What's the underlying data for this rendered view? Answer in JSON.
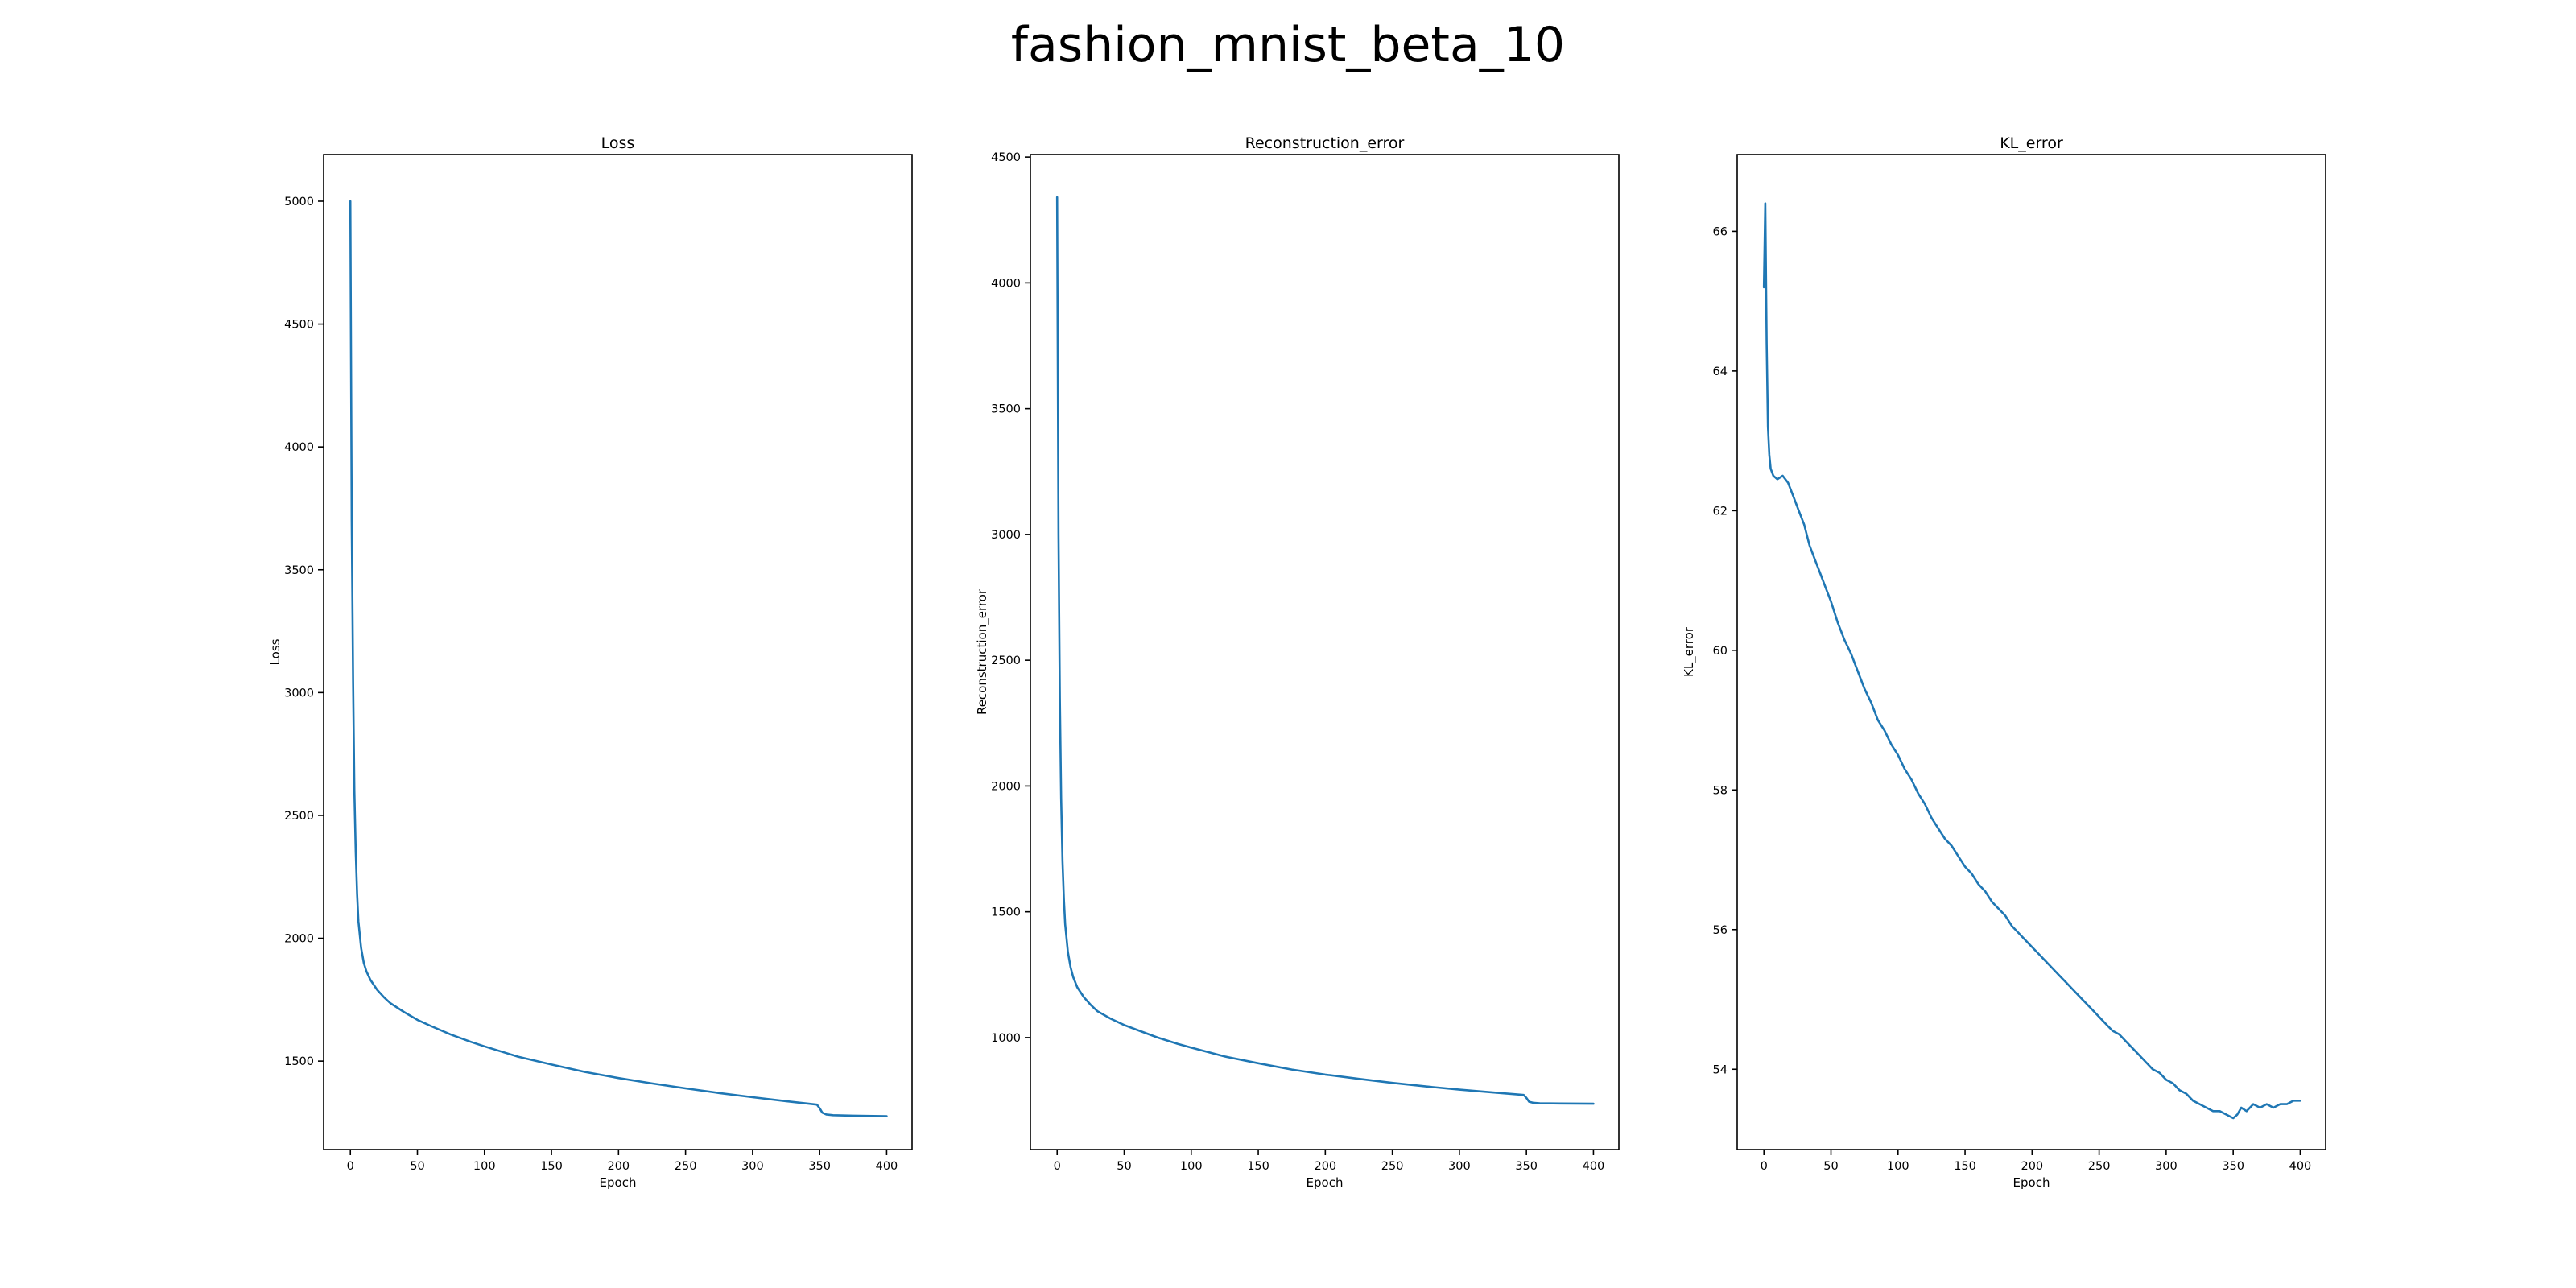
{
  "figure": {
    "suptitle": "fashion_mnist_beta_10",
    "line_color": "#1f77b4"
  },
  "chart_data": [
    {
      "type": "line",
      "title": "Loss",
      "xlabel": "Epoch",
      "ylabel": "Loss",
      "xlim": [
        -19.95,
        418.95
      ],
      "ylim": [
        1140,
        5190
      ],
      "xticks": [
        0,
        50,
        100,
        150,
        200,
        250,
        300,
        350,
        400
      ],
      "yticks": [
        1500,
        2000,
        2500,
        3000,
        3500,
        4000,
        4500,
        5000
      ],
      "grid": false,
      "x": [
        0,
        1,
        2,
        3,
        4,
        5,
        6,
        8,
        10,
        12,
        15,
        20,
        25,
        30,
        40,
        50,
        60,
        75,
        90,
        100,
        125,
        150,
        175,
        200,
        225,
        250,
        275,
        300,
        325,
        348,
        350,
        352,
        355,
        360,
        375,
        400
      ],
      "values": [
        5000,
        3700,
        3050,
        2600,
        2350,
        2180,
        2070,
        1960,
        1900,
        1865,
        1830,
        1790,
        1760,
        1735,
        1700,
        1668,
        1643,
        1608,
        1578,
        1560,
        1518,
        1486,
        1456,
        1431,
        1409,
        1389,
        1370,
        1353,
        1337,
        1323,
        1308,
        1290,
        1283,
        1280,
        1278,
        1276
      ]
    },
    {
      "type": "line",
      "title": "Reconstruction_error",
      "xlabel": "Epoch",
      "ylabel": "Reconstruction_error",
      "xlim": [
        -19.95,
        418.95
      ],
      "ylim": [
        555,
        4510
      ],
      "xticks": [
        0,
        50,
        100,
        150,
        200,
        250,
        300,
        350,
        400
      ],
      "yticks": [
        1000,
        1500,
        2000,
        2500,
        3000,
        3500,
        4000,
        4500
      ],
      "grid": false,
      "x": [
        0,
        1,
        2,
        3,
        4,
        5,
        6,
        8,
        10,
        12,
        15,
        20,
        25,
        30,
        40,
        50,
        60,
        75,
        90,
        100,
        125,
        150,
        175,
        200,
        225,
        250,
        275,
        300,
        325,
        348,
        350,
        352,
        355,
        360,
        375,
        400
      ],
      "values": [
        4340,
        3000,
        2350,
        1950,
        1700,
        1550,
        1450,
        1340,
        1280,
        1240,
        1200,
        1160,
        1130,
        1105,
        1075,
        1050,
        1030,
        1000,
        975,
        960,
        925,
        898,
        873,
        853,
        836,
        820,
        806,
        793,
        782,
        772,
        760,
        745,
        741,
        739,
        738,
        737
      ]
    },
    {
      "type": "line",
      "title": "KL_error",
      "xlabel": "Epoch",
      "ylabel": "KL_error",
      "xlim": [
        -19.95,
        418.95
      ],
      "ylim": [
        52.85,
        67.1
      ],
      "xticks": [
        0,
        50,
        100,
        150,
        200,
        250,
        300,
        350,
        400
      ],
      "yticks": [
        54,
        56,
        58,
        60,
        62,
        64,
        66
      ],
      "grid": false,
      "x": [
        0,
        1,
        2,
        3,
        4,
        5,
        7,
        10,
        14,
        18,
        22,
        26,
        30,
        34,
        38,
        42,
        46,
        50,
        55,
        60,
        65,
        70,
        75,
        80,
        85,
        90,
        95,
        100,
        105,
        110,
        115,
        120,
        125,
        130,
        135,
        140,
        145,
        150,
        155,
        160,
        165,
        170,
        175,
        180,
        185,
        190,
        195,
        200,
        205,
        210,
        215,
        220,
        225,
        230,
        235,
        240,
        245,
        250,
        255,
        260,
        265,
        270,
        275,
        280,
        285,
        290,
        295,
        300,
        305,
        310,
        315,
        320,
        325,
        330,
        335,
        340,
        345,
        350,
        353,
        356,
        360,
        365,
        370,
        375,
        380,
        385,
        390,
        395,
        400
      ],
      "values": [
        65.2,
        66.4,
        64.4,
        63.2,
        62.8,
        62.6,
        62.5,
        62.45,
        62.5,
        62.4,
        62.2,
        62.0,
        61.8,
        61.5,
        61.3,
        61.1,
        60.9,
        60.7,
        60.4,
        60.15,
        59.95,
        59.7,
        59.45,
        59.25,
        59.0,
        58.85,
        58.65,
        58.5,
        58.3,
        58.15,
        57.95,
        57.8,
        57.6,
        57.45,
        57.3,
        57.2,
        57.05,
        56.9,
        56.8,
        56.65,
        56.55,
        56.4,
        56.3,
        56.2,
        56.05,
        55.95,
        55.85,
        55.75,
        55.65,
        55.55,
        55.45,
        55.35,
        55.25,
        55.15,
        55.05,
        54.95,
        54.85,
        54.75,
        54.65,
        54.55,
        54.5,
        54.4,
        54.3,
        54.2,
        54.1,
        54.0,
        53.95,
        53.85,
        53.8,
        53.7,
        53.65,
        53.55,
        53.5,
        53.45,
        53.4,
        53.4,
        53.35,
        53.3,
        53.35,
        53.45,
        53.4,
        53.5,
        53.45,
        53.5,
        53.45,
        53.5,
        53.5,
        53.55,
        53.55
      ]
    }
  ]
}
